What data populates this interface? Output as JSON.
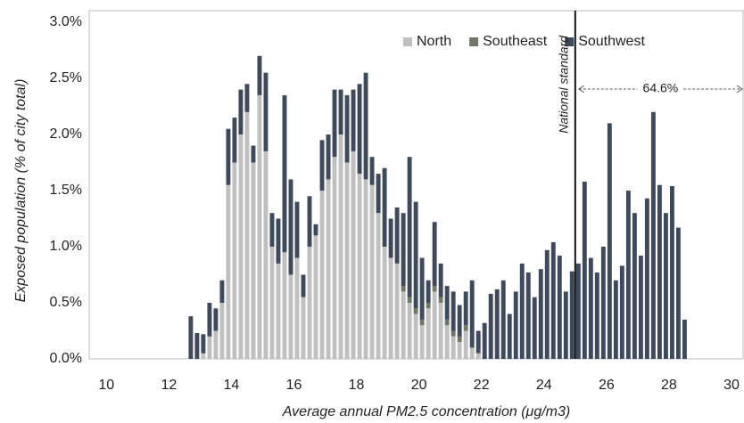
{
  "chart_data": {
    "type": "histogram",
    "xlabel": "Average annual PM2.5 concentration (μg/m3)",
    "ylabel": "Exposed population (% of city total)",
    "bins": [
      12.6,
      12.8,
      13.0,
      13.2,
      13.4,
      13.6,
      13.8,
      14.0,
      14.2,
      14.4,
      14.6,
      14.8,
      15.0,
      15.2,
      15.4,
      15.6,
      15.8,
      16.0,
      16.2,
      16.4,
      16.6,
      16.8,
      17.0,
      17.2,
      17.4,
      17.6,
      17.8,
      18.0,
      18.2,
      18.4,
      18.6,
      18.8,
      19.0,
      19.2,
      19.4,
      19.6,
      19.8,
      20.0,
      20.2,
      20.4,
      20.6,
      20.8,
      21.0,
      21.2,
      21.4,
      21.6,
      21.8,
      22.0,
      22.2,
      22.4,
      22.6,
      22.8,
      23.0,
      23.2,
      23.4,
      23.6,
      23.8,
      24.0,
      24.2,
      24.4,
      24.6,
      24.8,
      25.0,
      25.2,
      25.4,
      25.6,
      25.8,
      26.0,
      26.2,
      26.4,
      26.6,
      26.8,
      27.0,
      27.2,
      27.4,
      27.6,
      27.8,
      28.0,
      28.2,
      28.4,
      28.6
    ],
    "series": [
      {
        "name": "North",
        "color": "#bfbfbf",
        "values": [
          0,
          0,
          0.05,
          0.2,
          0.25,
          0.5,
          1.55,
          1.75,
          2.0,
          2.2,
          1.75,
          2.35,
          1.85,
          1.0,
          0.85,
          0.95,
          0.75,
          0.9,
          0.55,
          1.0,
          1.1,
          1.5,
          1.6,
          1.8,
          2.0,
          1.75,
          1.85,
          1.65,
          1.6,
          1.55,
          1.3,
          1.0,
          0.9,
          0.85,
          0.6,
          0.5,
          0.4,
          0.3,
          0.45,
          0.6,
          0.5,
          0.3,
          0.2,
          0.15,
          0.25,
          0.1,
          0.05,
          0,
          0,
          0,
          0,
          0,
          0,
          0,
          0,
          0,
          0,
          0,
          0,
          0,
          0,
          0,
          0,
          0,
          0,
          0,
          0,
          0,
          0,
          0,
          0,
          0,
          0,
          0,
          0,
          0,
          0,
          0,
          0,
          0
        ]
      },
      {
        "name": "Southeast",
        "color": "#6f7767",
        "values": [
          0,
          0,
          0,
          0,
          0,
          0,
          0,
          0,
          0,
          0,
          0,
          0,
          0,
          0,
          0,
          0,
          0,
          0,
          0,
          0,
          0,
          0,
          0,
          0,
          0,
          0,
          0,
          0,
          0,
          0,
          0,
          0,
          0,
          0,
          0.05,
          0.05,
          0.05,
          0.05,
          0.05,
          0.05,
          0.05,
          0.05,
          0.05,
          0.05,
          0.05,
          0,
          0,
          0,
          0,
          0,
          0,
          0,
          0,
          0,
          0,
          0,
          0,
          0,
          0,
          0,
          0,
          0,
          0,
          0,
          0,
          0,
          0,
          0,
          0,
          0,
          0,
          0,
          0,
          0,
          0,
          0,
          0,
          0,
          0,
          0
        ]
      },
      {
        "name": "Southwest",
        "color": "#3e4a5c",
        "values": [
          0.38,
          0.23,
          0.17,
          0.3,
          0.2,
          0.2,
          0.5,
          0.4,
          0.4,
          0.25,
          0.15,
          0.35,
          0.7,
          0.3,
          0.4,
          1.4,
          0.85,
          0.5,
          0.2,
          0.45,
          0.1,
          0.45,
          0.4,
          0.6,
          0.4,
          0.6,
          0.55,
          0.8,
          0.95,
          0.25,
          0.35,
          0.7,
          0.35,
          0.5,
          0.65,
          1.25,
          0.95,
          0.55,
          0.2,
          0.57,
          0.3,
          0.3,
          0.35,
          0.28,
          0.3,
          0.6,
          0.2,
          0.32,
          0.58,
          0.62,
          0.7,
          0.4,
          0.6,
          0.85,
          0.77,
          0.55,
          0.8,
          0.97,
          1.04,
          0.92,
          0.6,
          0.78,
          0.85,
          1.58,
          0.9,
          0.77,
          1.0,
          2.1,
          0.7,
          0.83,
          1.5,
          1.3,
          0.92,
          1.43,
          2.2,
          1.55,
          1.3,
          1.54,
          1.17,
          0.35
        ]
      }
    ],
    "xlim": [
      9.45,
      30.4
    ],
    "xticks": [
      10,
      12,
      14,
      16,
      18,
      20,
      22,
      24,
      26,
      28,
      30
    ],
    "ylim": [
      0,
      3.0
    ],
    "yticks": [
      {
        "value": 0,
        "label": "0.0%"
      },
      {
        "value": 0.5,
        "label": "0.5%"
      },
      {
        "value": 1.0,
        "label": "1.0%"
      },
      {
        "value": 1.5,
        "label": "1.5%"
      },
      {
        "value": 2.0,
        "label": "2.0%"
      },
      {
        "value": 2.5,
        "label": "2.5%"
      },
      {
        "value": 3.0,
        "label": "3.0%"
      }
    ],
    "stacked": true,
    "grid": false,
    "legend": "top-right",
    "reference_line": {
      "x": 25,
      "label": "National standard"
    },
    "annotation": {
      "text": "64.6%",
      "from": 25,
      "to": 30.4
    }
  }
}
